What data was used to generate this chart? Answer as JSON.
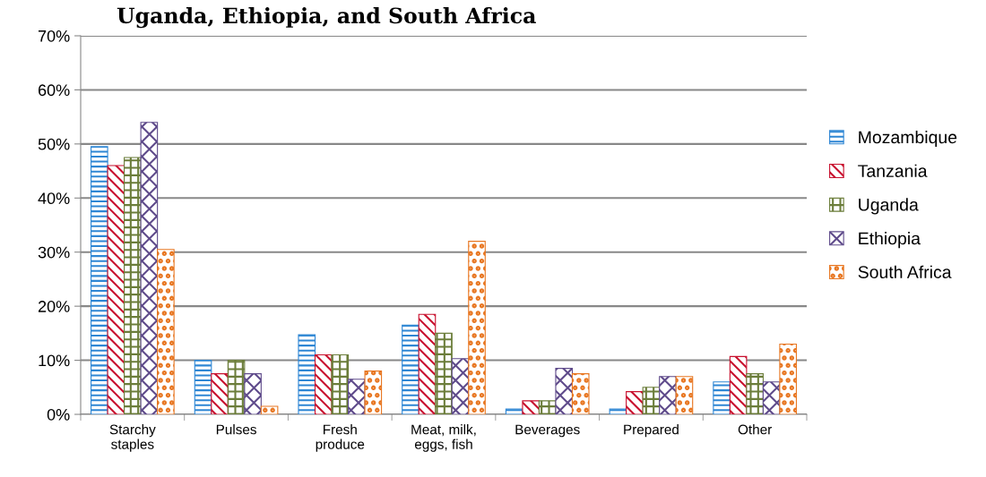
{
  "chart_data": {
    "type": "bar",
    "title": "Uganda, Ethiopia, and South Africa",
    "categories": [
      "Starchy\nstaples",
      "Pulses",
      "Fresh\nproduce",
      "Meat, milk,\neggs, fish",
      "Beverages",
      "Prepared",
      "Other"
    ],
    "series": [
      {
        "name": "Mozambique",
        "color": "#2e86d4",
        "values": [
          49.5,
          10,
          14.7,
          16.5,
          1,
          1,
          6
        ]
      },
      {
        "name": "Tanzania",
        "color": "#c8102e",
        "values": [
          46,
          7.5,
          11,
          18.5,
          2.5,
          4.2,
          10.7
        ]
      },
      {
        "name": "Uganda",
        "color": "#6b7d3a",
        "values": [
          47.5,
          10,
          11,
          15,
          2.5,
          5,
          7.5
        ]
      },
      {
        "name": "Ethiopia",
        "color": "#5f4b8b",
        "values": [
          54,
          7.5,
          6.5,
          10.3,
          8.5,
          7,
          6
        ]
      },
      {
        "name": "South Africa",
        "color": "#e87722",
        "values": [
          30.5,
          1.5,
          8,
          32,
          7.5,
          7,
          13
        ]
      }
    ],
    "ylim": [
      0,
      70
    ],
    "yticks": [
      {
        "value": 0,
        "label": "0%"
      },
      {
        "value": 10,
        "label": "10%"
      },
      {
        "value": 20,
        "label": "20%"
      },
      {
        "value": 30,
        "label": "30%"
      },
      {
        "value": 40,
        "label": "40%"
      },
      {
        "value": 50,
        "label": "50%"
      },
      {
        "value": 60,
        "label": "60%"
      },
      {
        "value": 70,
        "label": "70%"
      }
    ],
    "grid": "y",
    "legend": "right"
  }
}
